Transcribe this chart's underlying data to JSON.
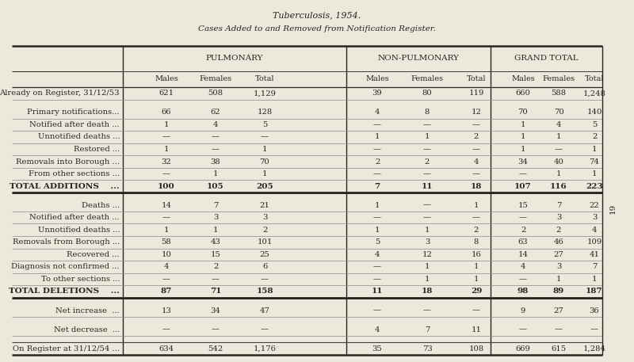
{
  "title1": "Tuberculosis, 1954.",
  "title2": "Cases Added to and Removed from Notification Register.",
  "bg_color": "#ede8dc",
  "text_color": "#2a2520",
  "col_headers_level1": [
    "PULMONARY",
    "NON-PULMONARY",
    "GRAND TOTAL"
  ],
  "col_headers_level2": [
    "Males",
    "Females",
    "Total",
    "Males",
    "Females",
    "Total",
    "Males",
    "Females",
    "Total"
  ],
  "rows": [
    {
      "label": "Already on Register, 31/12/53",
      "dots": false,
      "vals": [
        "621",
        "508",
        "1,129",
        "39",
        "80",
        "119",
        "660",
        "588",
        "1,248"
      ],
      "bold": false,
      "spacer": false
    },
    {
      "label": "",
      "dots": false,
      "vals": [
        "",
        "",
        "",
        "",
        "",
        "",
        "",
        "",
        ""
      ],
      "bold": false,
      "spacer": true
    },
    {
      "label": "Primary notifications...",
      "dots": true,
      "vals": [
        "66",
        "62",
        "128",
        "4",
        "8",
        "12",
        "70",
        "70",
        "140"
      ],
      "bold": false,
      "spacer": false
    },
    {
      "label": "Notified after death ...",
      "dots": true,
      "vals": [
        "1",
        "4",
        "5",
        "—",
        "—",
        "—",
        "1",
        "4",
        "5"
      ],
      "bold": false,
      "spacer": false
    },
    {
      "label": "Unnotified deaths ...",
      "dots": true,
      "vals": [
        "—",
        "—",
        "—",
        "1",
        "1",
        "2",
        "1",
        "1",
        "2"
      ],
      "bold": false,
      "spacer": false
    },
    {
      "label": "Restored ...",
      "dots": true,
      "vals": [
        "1",
        "—",
        "1",
        "—",
        "—",
        "—",
        "1",
        "—",
        "1"
      ],
      "bold": false,
      "spacer": false
    },
    {
      "label": "Removals into Borough ...",
      "dots": true,
      "vals": [
        "32",
        "38",
        "70",
        "2",
        "2",
        "4",
        "34",
        "40",
        "74"
      ],
      "bold": false,
      "spacer": false
    },
    {
      "label": "From other sections ...",
      "dots": true,
      "vals": [
        "—",
        "1",
        "1",
        "—",
        "—",
        "—",
        "—",
        "1",
        "1"
      ],
      "bold": false,
      "spacer": false
    },
    {
      "label": "TOTAL ADDITIONS    ...",
      "dots": true,
      "vals": [
        "100",
        "105",
        "205",
        "7",
        "11",
        "18",
        "107",
        "116",
        "223"
      ],
      "bold": true,
      "spacer": false,
      "thick_below": true
    },
    {
      "label": "",
      "dots": false,
      "vals": [
        "",
        "",
        "",
        "",
        "",
        "",
        "",
        "",
        ""
      ],
      "bold": false,
      "spacer": true
    },
    {
      "label": "Deaths ...",
      "dots": true,
      "vals": [
        "14",
        "7",
        "21",
        "1",
        "—",
        "1",
        "15",
        "7",
        "22"
      ],
      "bold": false,
      "spacer": false
    },
    {
      "label": "Notified after death ...",
      "dots": true,
      "vals": [
        "—",
        "3",
        "3",
        "—",
        "—",
        "—",
        "—",
        "3",
        "3"
      ],
      "bold": false,
      "spacer": false
    },
    {
      "label": "Unnotified deaths ...",
      "dots": true,
      "vals": [
        "1",
        "1",
        "2",
        "1",
        "1",
        "2",
        "2",
        "2",
        "4"
      ],
      "bold": false,
      "spacer": false
    },
    {
      "label": "Removals from Borough ...",
      "dots": true,
      "vals": [
        "58",
        "43",
        "101",
        "5",
        "3",
        "8",
        "63",
        "46",
        "109"
      ],
      "bold": false,
      "spacer": false
    },
    {
      "label": "Recovered ...",
      "dots": true,
      "vals": [
        "10",
        "15",
        "25",
        "4",
        "12",
        "16",
        "14",
        "27",
        "41"
      ],
      "bold": false,
      "spacer": false
    },
    {
      "label": "Diagnosis not confirmed ...",
      "dots": true,
      "vals": [
        "4",
        "2",
        "6",
        "—",
        "1",
        "1",
        "4",
        "3",
        "7"
      ],
      "bold": false,
      "spacer": false
    },
    {
      "label": "To other sections ...",
      "dots": true,
      "vals": [
        "—",
        "—",
        "—",
        "—",
        "1",
        "1",
        "—",
        "1",
        "1"
      ],
      "bold": false,
      "spacer": false
    },
    {
      "label": "TOTAL DELETIONS    ...",
      "dots": true,
      "vals": [
        "87",
        "71",
        "158",
        "11",
        "18",
        "29",
        "98",
        "89",
        "187"
      ],
      "bold": true,
      "spacer": false,
      "thick_below": true
    },
    {
      "label": "",
      "dots": false,
      "vals": [
        "",
        "",
        "",
        "",
        "",
        "",
        "",
        "",
        ""
      ],
      "bold": false,
      "spacer": true
    },
    {
      "label": "Net increase  ...",
      "dots": true,
      "vals": [
        "13",
        "34",
        "47",
        "—",
        "—",
        "—",
        "9",
        "27",
        "36"
      ],
      "bold": false,
      "spacer": false
    },
    {
      "label": "",
      "dots": false,
      "vals": [
        "",
        "",
        "",
        "",
        "",
        "",
        "",
        "",
        ""
      ],
      "bold": false,
      "spacer": true
    },
    {
      "label": "Net decrease  ...",
      "dots": true,
      "vals": [
        "—",
        "—",
        "—",
        "4",
        "7",
        "11",
        "—",
        "—",
        "—"
      ],
      "bold": false,
      "spacer": false
    },
    {
      "label": "",
      "dots": false,
      "vals": [
        "",
        "",
        "",
        "",
        "",
        "",
        "",
        "",
        ""
      ],
      "bold": false,
      "spacer": true
    },
    {
      "label": "On Register at 31/12/54 ...",
      "dots": true,
      "vals": [
        "634",
        "542",
        "1,176",
        "35",
        "73",
        "108",
        "669",
        "615",
        "1,284"
      ],
      "bold": false,
      "spacer": false
    }
  ],
  "side_number": "19"
}
